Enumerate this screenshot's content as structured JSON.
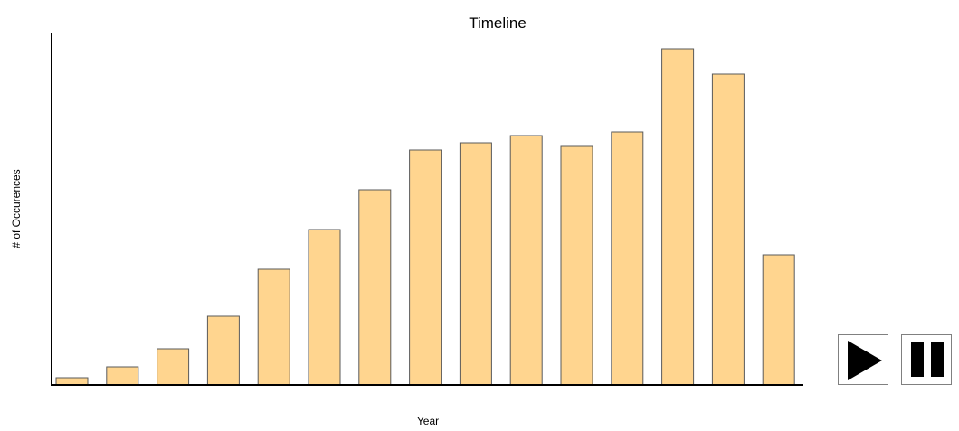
{
  "chart_data": {
    "type": "bar",
    "title": "Timeline",
    "xlabel": "Year",
    "ylabel": "# of Occurences",
    "values": [
      2,
      5,
      10,
      19,
      32,
      43,
      54,
      65,
      67,
      69,
      66,
      70,
      93,
      86,
      36
    ],
    "ylim": [
      0,
      100
    ],
    "grid": false,
    "colors": {
      "bar_fill": "#ffd58f",
      "bar_stroke": "#5a5a5a",
      "axis": "#000000"
    }
  },
  "controls": {
    "play_icon": "play-icon",
    "pause_icon": "pause-icon"
  }
}
